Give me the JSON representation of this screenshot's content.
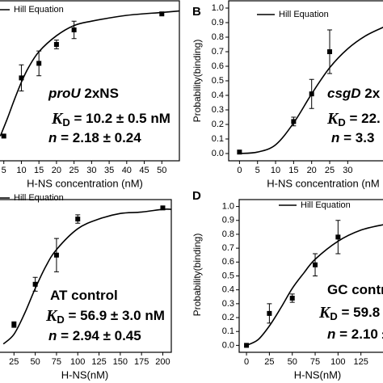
{
  "chart_data": [
    {
      "type": "scatter",
      "x_label": "H-NS concentration (nM)",
      "legend": "Hill Equation",
      "x": [
        5,
        10,
        15,
        20,
        25,
        50
      ],
      "values": [
        0.12,
        0.52,
        0.62,
        0.75,
        0.85,
        0.96
      ],
      "errors": [
        0,
        0.09,
        0.085,
        0.03,
        0.06,
        0
      ],
      "fit": {
        "x": [
          4,
          6,
          8,
          10,
          12,
          15,
          20,
          25,
          30,
          40,
          50,
          55
        ],
        "values": [
          0.12,
          0.24,
          0.37,
          0.49,
          0.59,
          0.7,
          0.81,
          0.88,
          0.91,
          0.95,
          0.97,
          0.98
        ]
      },
      "xlim": [
        0,
        55
      ],
      "ylim": [
        -0.05,
        1.05
      ],
      "xticks": [
        5,
        10,
        15,
        20,
        25,
        30,
        35,
        40,
        45,
        50
      ],
      "annotations": {
        "construct": "proU",
        "construct_suffix": " 2xNS",
        "kd_symbol": "K",
        "kd_subscript": "D",
        "kd_text": " = 10.2 ± 0.5 nM",
        "n_symbol": "n",
        "n_text": " =  2.18 ± 0.24"
      }
    },
    {
      "type": "scatter",
      "panel_label": "B",
      "x_label": "H-NS concentration (nM",
      "y_label": "Probability(binding)",
      "legend": "Hill Equation",
      "x": [
        0,
        15,
        20,
        25
      ],
      "values": [
        0.01,
        0.22,
        0.41,
        0.7
      ],
      "errors": [
        0,
        0.03,
        0.1,
        0.15
      ],
      "fit": {
        "x": [
          0,
          5,
          10,
          15,
          20,
          25,
          30,
          35,
          40
        ],
        "values": [
          0,
          0.01,
          0.06,
          0.21,
          0.41,
          0.59,
          0.72,
          0.81,
          0.87
        ]
      },
      "xlim": [
        -3,
        40
      ],
      "ylim": [
        -0.05,
        1.05
      ],
      "xticks": [
        0,
        5,
        10,
        15,
        20,
        25,
        30
      ],
      "yticks": [
        {
          "value": 0,
          "label": "0.0"
        },
        0.1,
        0.2,
        0.3,
        0.4,
        0.5,
        0.6,
        0.7,
        0.8,
        0.9,
        {
          "value": 1,
          "label": "1.0"
        }
      ],
      "annotations": {
        "construct": "csgD",
        "construct_suffix": " 2x",
        "kd_symbol": "K",
        "kd_subscript": "D",
        "kd_text": " = 22.",
        "n_symbol": "n",
        "n_text": " = 3.3"
      }
    },
    {
      "type": "scatter",
      "x_label": "H-NS(nM)",
      "legend": "Hill Equation",
      "x": [
        25,
        50,
        75,
        100,
        200
      ],
      "values": [
        0.15,
        0.44,
        0.65,
        0.91,
        0.99
      ],
      "errors": [
        0.02,
        0.05,
        0.12,
        0.03,
        0
      ],
      "fit": {
        "x": [
          12.5,
          25,
          37.5,
          50,
          62.5,
          75,
          100,
          125,
          150,
          175,
          200,
          210
        ],
        "values": [
          0.01,
          0.08,
          0.23,
          0.41,
          0.57,
          0.69,
          0.84,
          0.91,
          0.95,
          0.96,
          0.98,
          0.98
        ]
      },
      "xlim": [
        0,
        210
      ],
      "ylim": [
        -0.05,
        1.05
      ],
      "xticks": [
        25,
        50,
        75,
        100,
        125,
        150,
        175,
        200
      ],
      "annotations": {
        "construct_suffix": "AT control",
        "kd_symbol": "K",
        "kd_subscript": "D",
        "kd_text": " = 56.9 ± 3.0 nM",
        "n_symbol": "n",
        "n_text": " =  2.94 ± 0.45"
      }
    },
    {
      "type": "scatter",
      "panel_label": "D",
      "x_label": "H-NS(nM)",
      "y_label": "Probability(binding)",
      "legend": "Hill Equation",
      "x": [
        0,
        25,
        50,
        75,
        100
      ],
      "values": [
        0,
        0.23,
        0.34,
        0.58,
        0.78
      ],
      "errors": [
        0,
        0.07,
        0.03,
        0.08,
        0.12
      ],
      "fit": {
        "x": [
          0,
          12.5,
          25,
          37.5,
          50,
          62.5,
          75,
          100,
          125,
          150
        ],
        "values": [
          0,
          0.04,
          0.14,
          0.27,
          0.41,
          0.52,
          0.62,
          0.75,
          0.83,
          0.87
        ]
      },
      "xlim": [
        -8,
        150
      ],
      "ylim": [
        -0.05,
        1.05
      ],
      "xticks": [
        0,
        25,
        50,
        75,
        100,
        125
      ],
      "yticks": [
        {
          "value": 0,
          "label": "0.0"
        },
        0.1,
        0.2,
        0.3,
        0.4,
        0.5,
        0.6,
        0.7,
        0.8,
        0.9,
        {
          "value": 1,
          "label": "1.0"
        }
      ],
      "annotations": {
        "construct_suffix": "GC control",
        "kd_symbol": "K",
        "kd_subscript": "D",
        "kd_text": " = 59.8 ±",
        "n_symbol": "n",
        "n_text": " = 2.10 ±"
      }
    }
  ]
}
